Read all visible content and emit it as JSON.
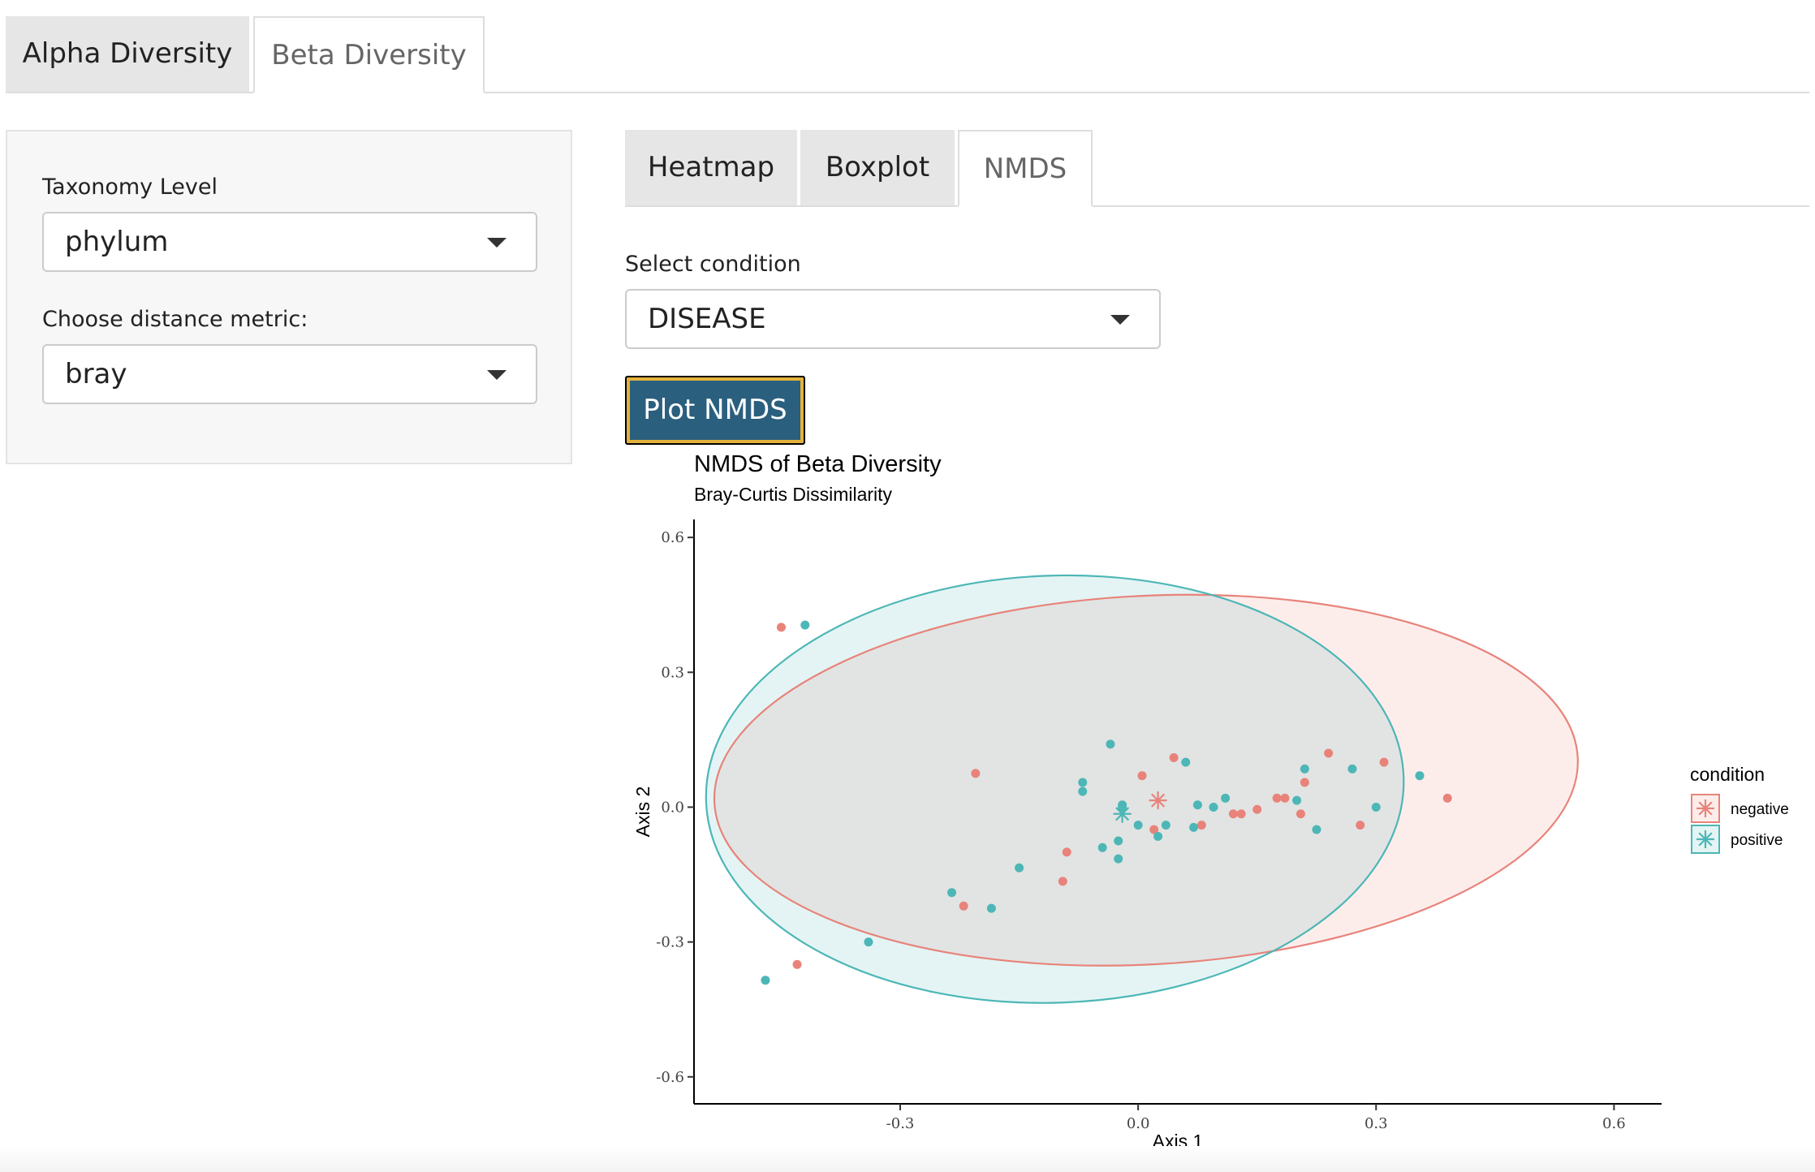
{
  "top_tabs": [
    "Alpha Diversity",
    "Beta Diversity"
  ],
  "sidebar": {
    "taxonomy_label": "Taxonomy Level",
    "taxonomy_value": "phylum",
    "distance_label": "Choose distance metric:",
    "distance_value": "bray"
  },
  "sub_tabs": [
    "Heatmap",
    "Boxplot",
    "NMDS"
  ],
  "condition": {
    "label": "Select condition",
    "value": "DISEASE"
  },
  "plot_button": "Plot NMDS",
  "chart_data": {
    "type": "scatter",
    "title": "NMDS of Beta Diversity",
    "subtitle": "Bray-Curtis Dissimilarity",
    "xlabel": "Axis 1",
    "ylabel": "Axis 2",
    "xlim": [
      -0.56,
      0.66
    ],
    "ylim": [
      -0.66,
      0.64
    ],
    "x_ticks": [
      -0.3,
      0.0,
      0.3,
      0.6
    ],
    "y_ticks": [
      -0.6,
      -0.3,
      0.0,
      0.3,
      0.6
    ],
    "x_tick_labels": [
      "-0.3",
      "0.0",
      "0.3",
      "0.6"
    ],
    "y_tick_labels": [
      "-0.6",
      "-0.3",
      "0.0",
      "0.3",
      "0.6"
    ],
    "grid": false,
    "legend": {
      "title": "condition",
      "position": "right",
      "entries": [
        "negative",
        "positive"
      ]
    },
    "series": [
      {
        "name": "negative",
        "color": "#E8837A",
        "centroid": [
          0.025,
          0.015
        ],
        "ellipse": {
          "cx": 0.01,
          "cy": 0.06,
          "rx": 0.545,
          "ry": 0.41,
          "angle": 3
        },
        "points": [
          [
            -0.45,
            0.4
          ],
          [
            -0.205,
            0.075
          ],
          [
            0.005,
            0.07
          ],
          [
            0.045,
            0.11
          ],
          [
            0.02,
            -0.05
          ],
          [
            0.08,
            -0.04
          ],
          [
            0.12,
            -0.015
          ],
          [
            0.13,
            -0.015
          ],
          [
            0.15,
            -0.005
          ],
          [
            0.175,
            0.02
          ],
          [
            0.185,
            0.02
          ],
          [
            0.21,
            0.055
          ],
          [
            0.24,
            0.12
          ],
          [
            0.31,
            0.1
          ],
          [
            0.28,
            -0.04
          ],
          [
            0.205,
            -0.015
          ],
          [
            0.39,
            0.02
          ],
          [
            -0.09,
            -0.1
          ],
          [
            -0.095,
            -0.165
          ],
          [
            -0.22,
            -0.22
          ],
          [
            -0.43,
            -0.35
          ]
        ]
      },
      {
        "name": "positive",
        "color": "#4DB6B6",
        "centroid": [
          -0.02,
          -0.015
        ],
        "ellipse": {
          "cx": -0.105,
          "cy": 0.04,
          "rx": 0.44,
          "ry": 0.475,
          "angle": 2
        },
        "points": [
          [
            -0.42,
            0.405
          ],
          [
            -0.035,
            0.14
          ],
          [
            0.06,
            0.1
          ],
          [
            -0.07,
            0.055
          ],
          [
            -0.07,
            0.035
          ],
          [
            -0.02,
            0.005
          ],
          [
            -0.02,
            0.0
          ],
          [
            0.0,
            -0.04
          ],
          [
            0.025,
            -0.065
          ],
          [
            0.035,
            -0.04
          ],
          [
            0.07,
            -0.045
          ],
          [
            0.075,
            0.005
          ],
          [
            0.095,
            0.0
          ],
          [
            0.11,
            0.02
          ],
          [
            0.2,
            0.015
          ],
          [
            0.21,
            0.085
          ],
          [
            0.27,
            0.085
          ],
          [
            0.3,
            0.0
          ],
          [
            0.225,
            -0.05
          ],
          [
            0.355,
            0.07
          ],
          [
            -0.045,
            -0.09
          ],
          [
            -0.025,
            -0.075
          ],
          [
            -0.025,
            -0.115
          ],
          [
            -0.15,
            -0.135
          ],
          [
            -0.235,
            -0.19
          ],
          [
            -0.185,
            -0.225
          ],
          [
            -0.34,
            -0.3
          ],
          [
            -0.47,
            -0.385
          ]
        ]
      }
    ]
  }
}
